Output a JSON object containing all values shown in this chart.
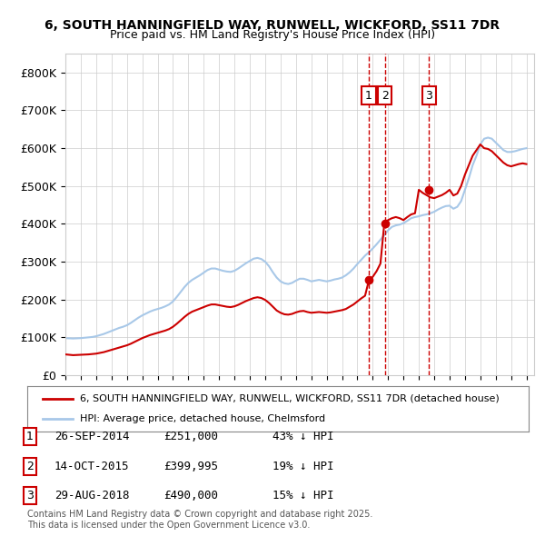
{
  "title": "6, SOUTH HANNINGFIELD WAY, RUNWELL, WICKFORD, SS11 7DR",
  "subtitle": "Price paid vs. HM Land Registry's House Price Index (HPI)",
  "ylabel": "",
  "ylim": [
    0,
    850000
  ],
  "yticks": [
    0,
    100000,
    200000,
    300000,
    400000,
    500000,
    600000,
    700000,
    800000
  ],
  "ytick_labels": [
    "£0",
    "£100K",
    "£200K",
    "£300K",
    "£400K",
    "£500K",
    "£600K",
    "£700K",
    "£800K"
  ],
  "xlim_start": 1995.0,
  "xlim_end": 2025.5,
  "hpi_color": "#a8c8e8",
  "price_color": "#cc0000",
  "sale_marker_color": "#cc0000",
  "vline_color": "#cc0000",
  "grid_color": "#cccccc",
  "background_color": "#ffffff",
  "legend_entries": [
    "6, SOUTH HANNINGFIELD WAY, RUNWELL, WICKFORD, SS11 7DR (detached house)",
    "HPI: Average price, detached house, Chelmsford"
  ],
  "sales": [
    {
      "label": "1",
      "date": 2014.74,
      "price": 251000,
      "note": "26-SEP-2014",
      "price_str": "£251,000",
      "pct": "43% ↓ HPI"
    },
    {
      "label": "2",
      "date": 2015.79,
      "price": 399995,
      "note": "14-OCT-2015",
      "price_str": "£399,995",
      "pct": "19% ↓ HPI"
    },
    {
      "label": "3",
      "date": 2018.66,
      "price": 490000,
      "note": "29-AUG-2018",
      "price_str": "£490,000",
      "pct": "15% ↓ HPI"
    }
  ],
  "footer": "Contains HM Land Registry data © Crown copyright and database right 2025.\nThis data is licensed under the Open Government Licence v3.0.",
  "hpi_data_x": [
    1995.0,
    1995.25,
    1995.5,
    1995.75,
    1996.0,
    1996.25,
    1996.5,
    1996.75,
    1997.0,
    1997.25,
    1997.5,
    1997.75,
    1998.0,
    1998.25,
    1998.5,
    1998.75,
    1999.0,
    1999.25,
    1999.5,
    1999.75,
    2000.0,
    2000.25,
    2000.5,
    2000.75,
    2001.0,
    2001.25,
    2001.5,
    2001.75,
    2002.0,
    2002.25,
    2002.5,
    2002.75,
    2003.0,
    2003.25,
    2003.5,
    2003.75,
    2004.0,
    2004.25,
    2004.5,
    2004.75,
    2005.0,
    2005.25,
    2005.5,
    2005.75,
    2006.0,
    2006.25,
    2006.5,
    2006.75,
    2007.0,
    2007.25,
    2007.5,
    2007.75,
    2008.0,
    2008.25,
    2008.5,
    2008.75,
    2009.0,
    2009.25,
    2009.5,
    2009.75,
    2010.0,
    2010.25,
    2010.5,
    2010.75,
    2011.0,
    2011.25,
    2011.5,
    2011.75,
    2012.0,
    2012.25,
    2012.5,
    2012.75,
    2013.0,
    2013.25,
    2013.5,
    2013.75,
    2014.0,
    2014.25,
    2014.5,
    2014.75,
    2015.0,
    2015.25,
    2015.5,
    2015.75,
    2016.0,
    2016.25,
    2016.5,
    2016.75,
    2017.0,
    2017.25,
    2017.5,
    2017.75,
    2018.0,
    2018.25,
    2018.5,
    2018.75,
    2019.0,
    2019.25,
    2019.5,
    2019.75,
    2020.0,
    2020.25,
    2020.5,
    2020.75,
    2021.0,
    2021.25,
    2021.5,
    2021.75,
    2022.0,
    2022.25,
    2022.5,
    2022.75,
    2023.0,
    2023.25,
    2023.5,
    2023.75,
    2024.0,
    2024.25,
    2024.5,
    2024.75,
    2025.0
  ],
  "hpi_data_y": [
    98000,
    97500,
    97000,
    97500,
    98000,
    99000,
    100000,
    101000,
    103000,
    106000,
    109000,
    113000,
    117000,
    121000,
    125000,
    128000,
    132000,
    138000,
    145000,
    152000,
    158000,
    163000,
    168000,
    172000,
    175000,
    178000,
    182000,
    187000,
    195000,
    207000,
    220000,
    233000,
    244000,
    252000,
    258000,
    264000,
    271000,
    278000,
    282000,
    282000,
    279000,
    276000,
    274000,
    273000,
    276000,
    282000,
    289000,
    296000,
    302000,
    308000,
    310000,
    307000,
    300000,
    288000,
    272000,
    258000,
    248000,
    243000,
    241000,
    244000,
    250000,
    255000,
    255000,
    252000,
    248000,
    250000,
    252000,
    250000,
    248000,
    250000,
    253000,
    255000,
    258000,
    264000,
    272000,
    282000,
    294000,
    305000,
    316000,
    325000,
    335000,
    346000,
    358000,
    370000,
    383000,
    392000,
    396000,
    398000,
    402000,
    408000,
    415000,
    418000,
    420000,
    423000,
    425000,
    428000,
    432000,
    438000,
    443000,
    447000,
    448000,
    440000,
    445000,
    460000,
    490000,
    520000,
    555000,
    580000,
    610000,
    625000,
    628000,
    625000,
    615000,
    605000,
    595000,
    590000,
    590000,
    592000,
    595000,
    598000,
    600000
  ],
  "price_line_x": [
    1995.0,
    1995.25,
    1995.5,
    1995.75,
    1996.0,
    1996.25,
    1996.5,
    1996.75,
    1997.0,
    1997.25,
    1997.5,
    1997.75,
    1998.0,
    1998.25,
    1998.5,
    1998.75,
    1999.0,
    1999.25,
    1999.5,
    1999.75,
    2000.0,
    2000.25,
    2000.5,
    2000.75,
    2001.0,
    2001.25,
    2001.5,
    2001.75,
    2002.0,
    2002.25,
    2002.5,
    2002.75,
    2003.0,
    2003.25,
    2003.5,
    2003.75,
    2004.0,
    2004.25,
    2004.5,
    2004.75,
    2005.0,
    2005.25,
    2005.5,
    2005.75,
    2006.0,
    2006.25,
    2006.5,
    2006.75,
    2007.0,
    2007.25,
    2007.5,
    2007.75,
    2008.0,
    2008.25,
    2008.5,
    2008.75,
    2009.0,
    2009.25,
    2009.5,
    2009.75,
    2010.0,
    2010.25,
    2010.5,
    2010.75,
    2011.0,
    2011.25,
    2011.5,
    2011.75,
    2012.0,
    2012.25,
    2012.5,
    2012.75,
    2013.0,
    2013.25,
    2013.5,
    2013.75,
    2014.0,
    2014.25,
    2014.5,
    2014.75,
    2015.0,
    2015.25,
    2015.5,
    2015.75,
    2016.0,
    2016.25,
    2016.5,
    2016.75,
    2017.0,
    2017.25,
    2017.5,
    2017.75,
    2018.0,
    2018.25,
    2018.5,
    2018.75,
    2019.0,
    2019.25,
    2019.5,
    2019.75,
    2020.0,
    2020.25,
    2020.5,
    2020.75,
    2021.0,
    2021.25,
    2021.5,
    2021.75,
    2022.0,
    2022.25,
    2022.5,
    2022.75,
    2023.0,
    2023.25,
    2023.5,
    2023.75,
    2024.0,
    2024.25,
    2024.5,
    2024.75,
    2025.0
  ],
  "price_line_y": [
    55000,
    54000,
    53000,
    53500,
    54000,
    54500,
    55000,
    56000,
    57000,
    59000,
    61000,
    64000,
    67000,
    70000,
    73000,
    76000,
    79000,
    83000,
    88000,
    93000,
    98000,
    102000,
    106000,
    109000,
    112000,
    115000,
    118000,
    122000,
    128000,
    136000,
    145000,
    154000,
    162000,
    168000,
    172000,
    176000,
    180000,
    184000,
    187000,
    187000,
    185000,
    183000,
    181000,
    180000,
    182000,
    186000,
    191000,
    196000,
    200000,
    204000,
    206000,
    204000,
    199000,
    191000,
    181000,
    171000,
    165000,
    161000,
    160000,
    162000,
    166000,
    169000,
    170000,
    167000,
    165000,
    166000,
    167000,
    166000,
    165000,
    166000,
    168000,
    170000,
    172000,
    175000,
    181000,
    187000,
    195000,
    203000,
    210000,
    251000,
    260000,
    275000,
    295000,
    399995,
    410000,
    415000,
    418000,
    415000,
    410000,
    418000,
    425000,
    428000,
    490000,
    482000,
    476000,
    470000,
    468000,
    472000,
    476000,
    482000,
    490000,
    475000,
    480000,
    500000,
    530000,
    555000,
    580000,
    595000,
    610000,
    600000,
    598000,
    592000,
    582000,
    572000,
    562000,
    555000,
    552000,
    555000,
    558000,
    560000,
    558000
  ]
}
